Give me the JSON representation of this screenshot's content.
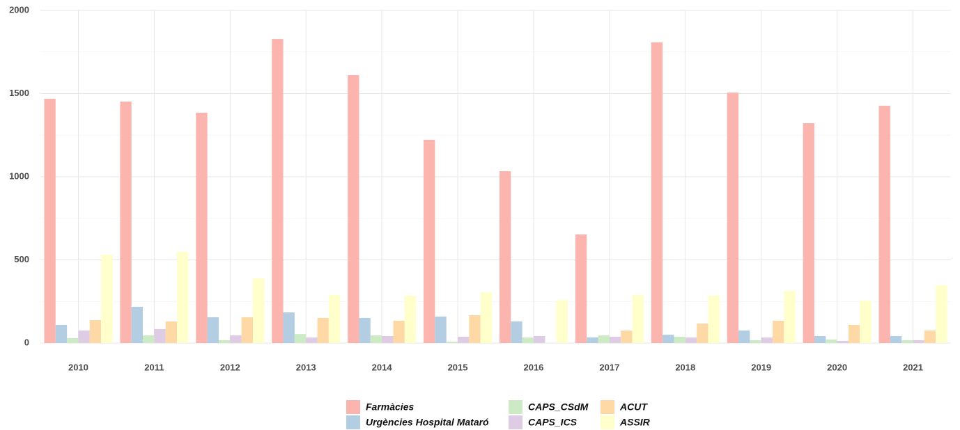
{
  "chart_data": {
    "type": "bar",
    "categories": [
      "2010",
      "2011",
      "2012",
      "2013",
      "2014",
      "2015",
      "2016",
      "2017",
      "2018",
      "2019",
      "2020",
      "2021"
    ],
    "series": [
      {
        "name": "Farmàcies",
        "color": "#FBB4AE",
        "values": [
          1469,
          1452,
          1385,
          1828,
          1611,
          1222,
          1033,
          653,
          1808,
          1506,
          1322,
          1427
        ]
      },
      {
        "name": "Urgències Hospital Mataró",
        "color": "#B3CDE3",
        "values": [
          109,
          218,
          155,
          184,
          151,
          159,
          130,
          34,
          50,
          75,
          42,
          42
        ]
      },
      {
        "name": "CAPS_CSdM",
        "color": "#CCEBC5",
        "values": [
          29,
          46,
          17,
          54,
          46,
          8,
          33,
          46,
          38,
          17,
          21,
          17
        ]
      },
      {
        "name": "CAPS_ICS",
        "color": "#DECBE4",
        "values": [
          75,
          84,
          46,
          33,
          42,
          38,
          42,
          38,
          33,
          33,
          13,
          17
        ]
      },
      {
        "name": "ACUT",
        "color": "#FED9A6",
        "values": [
          138,
          130,
          155,
          151,
          134,
          167,
          0,
          75,
          117,
          134,
          109,
          75
        ]
      },
      {
        "name": "ASSIR",
        "color": "#FFFFCC",
        "values": [
          531,
          548,
          389,
          289,
          285,
          305,
          259,
          289,
          285,
          314,
          255,
          347
        ]
      }
    ],
    "ylim": [
      0,
      2000
    ],
    "yticks": [
      0,
      500,
      1000,
      1500,
      2000
    ],
    "grid": true,
    "legend": "bottom"
  }
}
